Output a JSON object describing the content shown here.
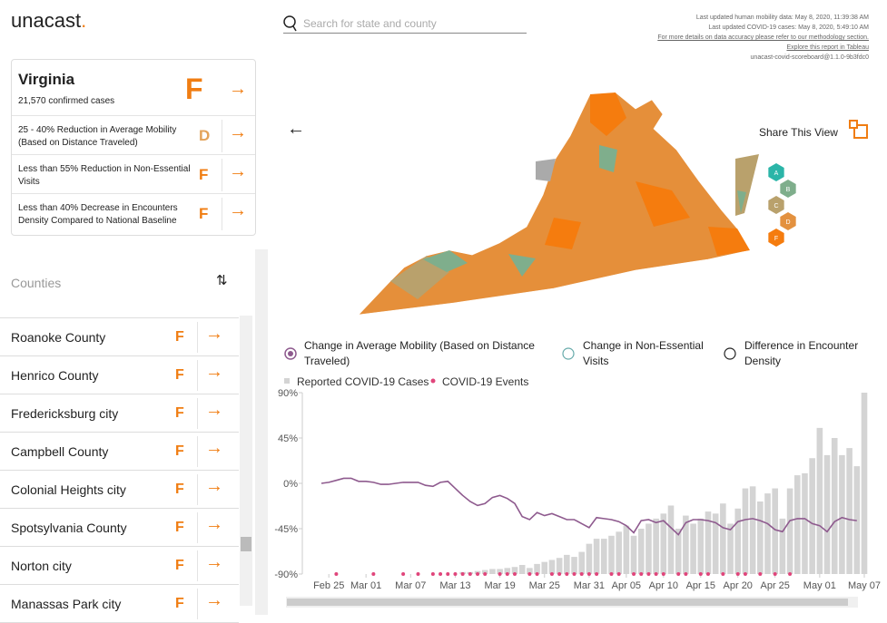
{
  "header": {
    "logo": "unacast",
    "logo_dot": ".",
    "search_placeholder": "Search for state and county",
    "updates": [
      "Last updated human mobility data: May 8, 2020, 11:39:38 AM",
      "Last updated COVID-19 cases: May 8, 2020, 5:49:10 AM",
      "For more details on data accuracy please refer to our methodology section.",
      "Explore this report in Tableau",
      "unacast-covid-scoreboard@1.1.0-9b3fdc0"
    ]
  },
  "state_card": {
    "name": "Virginia",
    "cases": "21,570 confirmed cases",
    "grade": "F",
    "metrics": [
      {
        "text": "25 - 40% Reduction in Average Mobility (Based on Distance Traveled)",
        "grade": "D"
      },
      {
        "text": "Less than 55% Reduction in Non-Essential Visits",
        "grade": "F"
      },
      {
        "text": "Less than 40% Decrease in Encounters Density Compared to National Baseline",
        "grade": "F"
      }
    ]
  },
  "counties": {
    "title": "Counties",
    "rows": [
      {
        "name": "Roanoke County",
        "grade": "F"
      },
      {
        "name": "Henrico County",
        "grade": "F"
      },
      {
        "name": "Fredericksburg city",
        "grade": "F"
      },
      {
        "name": "Campbell County",
        "grade": "F"
      },
      {
        "name": "Colonial Heights city",
        "grade": "F"
      },
      {
        "name": "Spotsylvania County",
        "grade": "F"
      },
      {
        "name": "Norton city",
        "grade": "F"
      },
      {
        "name": "Manassas Park city",
        "grade": "F"
      }
    ]
  },
  "map": {
    "share": "Share This View",
    "grades": [
      {
        "label": "A",
        "color": "#2bb5a8"
      },
      {
        "label": "B",
        "color": "#7fae8c"
      },
      {
        "label": "C",
        "color": "#b9a16c"
      },
      {
        "label": "D",
        "color": "#e3913f"
      },
      {
        "label": "F",
        "color": "#f57c0e"
      }
    ]
  },
  "chart_data": {
    "type": "combo",
    "metric_options": [
      "Change in Non-Essential Visits",
      "Difference in Encounter Density"
    ],
    "categories": [
      null,
      "Feb 25",
      null,
      null,
      null,
      null,
      "Mar 01",
      null,
      null,
      null,
      null,
      null,
      "Mar 07",
      null,
      null,
      null,
      null,
      null,
      "Mar 13",
      null,
      null,
      null,
      null,
      null,
      "Mar 19",
      null,
      null,
      null,
      null,
      null,
      "Mar 25",
      null,
      null,
      null,
      null,
      null,
      "Mar 31",
      null,
      null,
      null,
      null,
      "Apr 05",
      null,
      null,
      null,
      null,
      "Apr 10",
      null,
      null,
      null,
      null,
      "Apr 15",
      null,
      null,
      null,
      null,
      "Apr 20",
      null,
      null,
      null,
      null,
      "Apr 25",
      null,
      null,
      null,
      null,
      null,
      "May 01",
      null,
      null,
      null,
      null,
      null,
      "May 07"
    ],
    "ylim": [
      -90,
      90
    ],
    "yticks": [
      {
        "value": 90,
        "label": "90%"
      },
      {
        "value": 45,
        "label": "45%"
      },
      {
        "value": 0,
        "label": "0%"
      },
      {
        "value": -45,
        "label": "-45%"
      },
      {
        "value": -90,
        "label": "-90%"
      }
    ],
    "series": [
      {
        "name": "Reported COVID-19 Cases",
        "type": "bar",
        "color": "#d4d4d4",
        "values": [
          null,
          null,
          null,
          null,
          null,
          null,
          null,
          null,
          null,
          null,
          null,
          null,
          null,
          null,
          null,
          null,
          null,
          null,
          null,
          -88,
          -88,
          -87,
          -86,
          -85,
          -85,
          -84,
          -83,
          -81,
          -84,
          -80,
          -78,
          -76,
          -74,
          -71,
          -73,
          -68,
          -60,
          -55,
          -55,
          -52,
          -48,
          -42,
          -52,
          -45,
          -40,
          -35,
          -30,
          -22,
          -45,
          -32,
          -40,
          -35,
          -28,
          -30,
          -20,
          -40,
          -25,
          -5,
          -3,
          -18,
          -10,
          -5,
          -35,
          -5,
          8,
          10,
          25,
          55,
          28,
          45,
          28,
          35,
          17,
          90
        ]
      },
      {
        "name": "COVID-19 Events",
        "type": "dot",
        "color": "#e0457b",
        "values": [
          null,
          null,
          -90,
          null,
          null,
          null,
          null,
          -90,
          null,
          null,
          null,
          -90,
          null,
          -90,
          null,
          -90,
          -90,
          -90,
          -90,
          -90,
          -90,
          -90,
          -90,
          null,
          -90,
          -90,
          -90,
          null,
          -90,
          -90,
          null,
          -90,
          -90,
          -90,
          -90,
          -90,
          -90,
          -90,
          null,
          -90,
          -90,
          null,
          -90,
          -90,
          -90,
          -90,
          -90,
          null,
          -90,
          -90,
          null,
          -90,
          -90,
          null,
          -90,
          null,
          -90,
          -90,
          null,
          -90,
          null,
          -90,
          null,
          -90,
          null,
          null,
          null,
          null,
          null,
          null,
          null,
          null,
          null,
          null
        ]
      },
      {
        "name": "Change in Average Mobility (Based on Distance Traveled)",
        "type": "line",
        "color": "#8e5a8e",
        "values": [
          0,
          1,
          3,
          5,
          5,
          2,
          2,
          1,
          -1,
          -1,
          0,
          1,
          1,
          1,
          -2,
          -3,
          1,
          2,
          -5,
          -12,
          -18,
          -22,
          -20,
          -14,
          -12,
          -15,
          -20,
          -33,
          -36,
          -29,
          -32,
          -30,
          -33,
          -36,
          -36,
          -40,
          -44,
          -34,
          -35,
          -36,
          -38,
          -42,
          -49,
          -37,
          -36,
          -39,
          -37,
          -44,
          -51,
          -39,
          -36,
          -36,
          -37,
          -39,
          -44,
          -46,
          -38,
          -36,
          -35,
          -37,
          -40,
          -46,
          -48,
          -37,
          -35,
          -35,
          -40,
          -42,
          -48,
          -38,
          -34,
          -36,
          -37,
          null
        ]
      }
    ]
  }
}
